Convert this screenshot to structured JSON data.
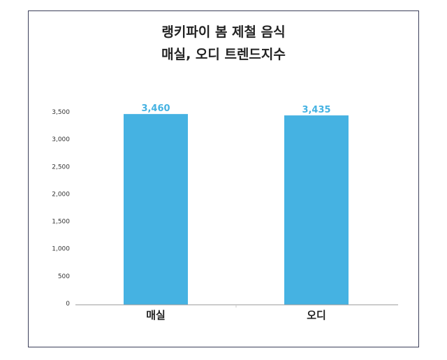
{
  "chart_data": {
    "type": "bar",
    "title_line1": "랭키파이 봄 제철 음식",
    "title_line2": "매실, 오디 트렌드지수",
    "categories": [
      "매실",
      "오디"
    ],
    "values": [
      3460,
      3435
    ],
    "data_labels": [
      "3,460",
      "3,435"
    ],
    "ylim": [
      0,
      3500
    ],
    "yticks": [
      "0",
      "500",
      "1,000",
      "1,500",
      "2,000",
      "2,500",
      "3,000",
      "3,500"
    ],
    "xlabel": "",
    "ylabel": "",
    "grid": false,
    "bar_color": "#45b2e2",
    "label_color": "#45b2e2"
  }
}
